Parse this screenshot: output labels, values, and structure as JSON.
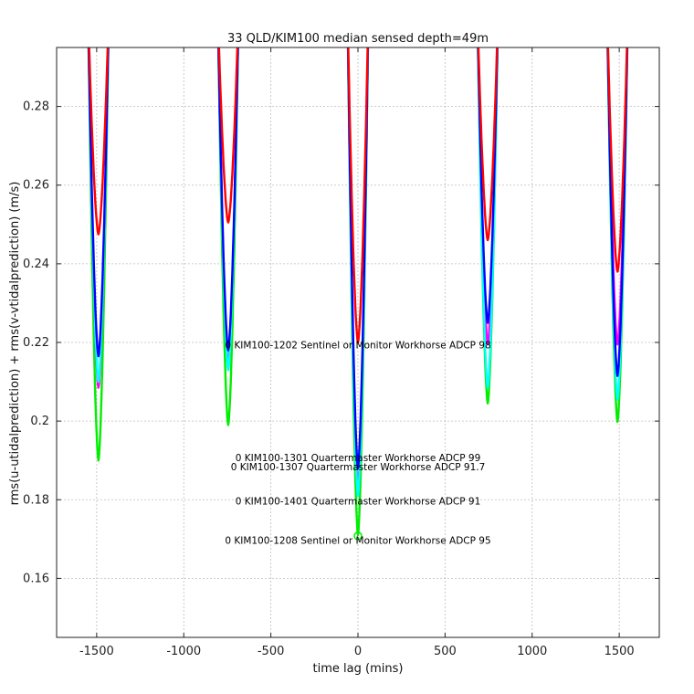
{
  "chart_data": {
    "type": "line",
    "title": "33 QLD/KIM100 median sensed depth=49m",
    "xlabel": "time lag (mins)",
    "ylabel": "rms(u-utidalprediction) + rms(v-vtidalprediction) (m/s)",
    "xlim": [
      -1730,
      1730
    ],
    "ylim": [
      0.145,
      0.295
    ],
    "x_ticks": [
      -1500,
      -1000,
      -500,
      0,
      500,
      1000,
      1500
    ],
    "x_tick_labels": [
      "-1500",
      "-1000",
      "-500",
      "0",
      "500",
      "1000",
      "1500"
    ],
    "y_ticks": [
      0.16,
      0.18,
      0.2,
      0.22,
      0.24,
      0.26,
      0.28
    ],
    "y_tick_labels": [
      "0.16",
      "0.18",
      "0.2",
      "0.22",
      "0.24",
      "0.26",
      "0.28"
    ],
    "grid": true,
    "dip_centers": [
      -1490,
      -745,
      0,
      745,
      1490
    ],
    "series": [
      {
        "color": "#00ee00",
        "minima": [
          0.19,
          0.199,
          0.171,
          0.2045,
          0.1998
        ]
      },
      {
        "color": "#ff00ff",
        "minima": [
          0.2085,
          0.2145,
          0.183,
          0.2195,
          0.2195
        ]
      },
      {
        "color": "#00ffff",
        "minima": [
          0.21,
          0.213,
          0.181,
          0.2085,
          0.2055
        ]
      },
      {
        "color": "#0000ff",
        "minima": [
          0.2165,
          0.218,
          0.188,
          0.225,
          0.2115
        ]
      },
      {
        "color": "#ff0000",
        "minima": [
          0.2475,
          0.2505,
          0.22,
          0.246,
          0.238
        ]
      }
    ],
    "annotations": [
      {
        "text": "0 KIM100-1202 Sentinel or Monitor Workhorse ADCP 98",
        "x": 0,
        "y": 0.2185
      },
      {
        "text": "0 KIM100-1301 Quartermaster Workhorse ADCP 99",
        "x": 0,
        "y": 0.1898
      },
      {
        "text": "0 KIM100-1307 Quartermaster Workhorse ADCP 91.7",
        "x": 0,
        "y": 0.1875
      },
      {
        "text": "0 KIM100-1401 Quartermaster Workhorse ADCP 91",
        "x": 0,
        "y": 0.1788
      },
      {
        "text": "0 KIM100-1208 Sentinel or Monitor Workhorse ADCP 95",
        "x": 0,
        "y": 0.1688
      }
    ],
    "min_marker": {
      "x": 0,
      "y": 0.1708,
      "color": "#00ee00"
    }
  }
}
